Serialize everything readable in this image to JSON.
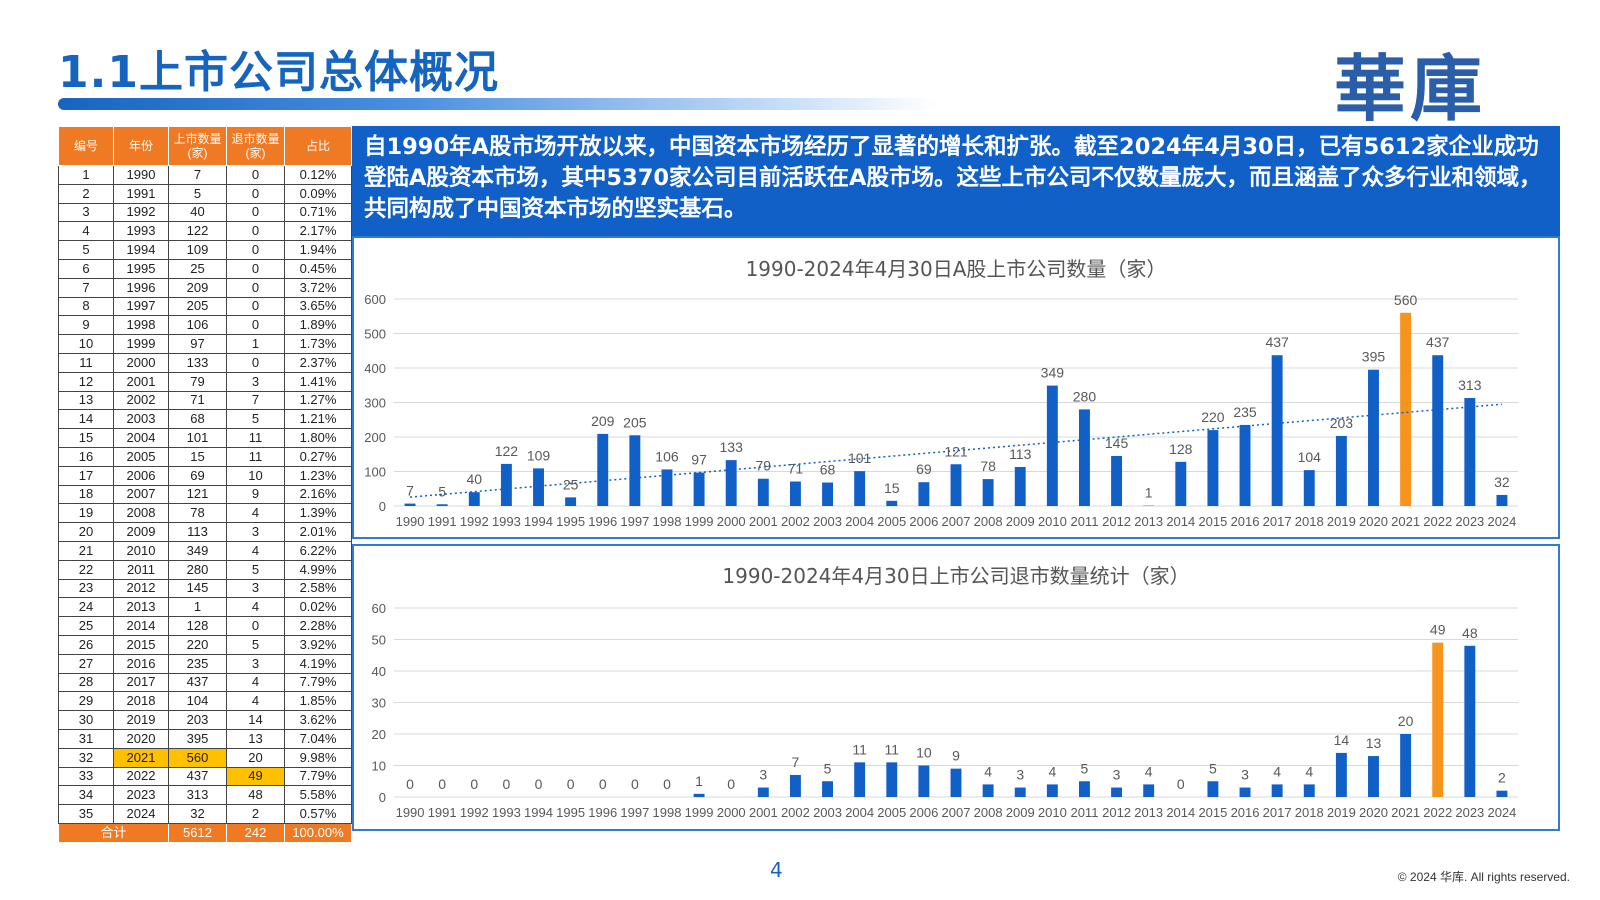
{
  "header": {
    "title": "1.1上市公司总体概况",
    "logo": "華庫"
  },
  "table": {
    "headers": [
      "编号",
      "年份",
      "上市数量\n(家)",
      "退市数量\n(家)",
      "占比"
    ],
    "rows": [
      [
        "1",
        "1990",
        "7",
        "0",
        "0.12%"
      ],
      [
        "2",
        "1991",
        "5",
        "0",
        "0.09%"
      ],
      [
        "3",
        "1992",
        "40",
        "0",
        "0.71%"
      ],
      [
        "4",
        "1993",
        "122",
        "0",
        "2.17%"
      ],
      [
        "5",
        "1994",
        "109",
        "0",
        "1.94%"
      ],
      [
        "6",
        "1995",
        "25",
        "0",
        "0.45%"
      ],
      [
        "7",
        "1996",
        "209",
        "0",
        "3.72%"
      ],
      [
        "8",
        "1997",
        "205",
        "0",
        "3.65%"
      ],
      [
        "9",
        "1998",
        "106",
        "0",
        "1.89%"
      ],
      [
        "10",
        "1999",
        "97",
        "1",
        "1.73%"
      ],
      [
        "11",
        "2000",
        "133",
        "0",
        "2.37%"
      ],
      [
        "12",
        "2001",
        "79",
        "3",
        "1.41%"
      ],
      [
        "13",
        "2002",
        "71",
        "7",
        "1.27%"
      ],
      [
        "14",
        "2003",
        "68",
        "5",
        "1.21%"
      ],
      [
        "15",
        "2004",
        "101",
        "11",
        "1.80%"
      ],
      [
        "16",
        "2005",
        "15",
        "11",
        "0.27%"
      ],
      [
        "17",
        "2006",
        "69",
        "10",
        "1.23%"
      ],
      [
        "18",
        "2007",
        "121",
        "9",
        "2.16%"
      ],
      [
        "19",
        "2008",
        "78",
        "4",
        "1.39%"
      ],
      [
        "20",
        "2009",
        "113",
        "3",
        "2.01%"
      ],
      [
        "21",
        "2010",
        "349",
        "4",
        "6.22%"
      ],
      [
        "22",
        "2011",
        "280",
        "5",
        "4.99%"
      ],
      [
        "23",
        "2012",
        "145",
        "3",
        "2.58%"
      ],
      [
        "24",
        "2013",
        "1",
        "4",
        "0.02%"
      ],
      [
        "25",
        "2014",
        "128",
        "0",
        "2.28%"
      ],
      [
        "26",
        "2015",
        "220",
        "5",
        "3.92%"
      ],
      [
        "27",
        "2016",
        "235",
        "3",
        "4.19%"
      ],
      [
        "28",
        "2017",
        "437",
        "4",
        "7.79%"
      ],
      [
        "29",
        "2018",
        "104",
        "4",
        "1.85%"
      ],
      [
        "30",
        "2019",
        "203",
        "14",
        "3.62%"
      ],
      [
        "31",
        "2020",
        "395",
        "13",
        "7.04%"
      ],
      [
        "32",
        "2021",
        "560",
        "20",
        "9.98%"
      ],
      [
        "33",
        "2022",
        "437",
        "49",
        "7.79%"
      ],
      [
        "34",
        "2023",
        "313",
        "48",
        "5.58%"
      ],
      [
        "35",
        "2024",
        "32",
        "2",
        "0.57%"
      ]
    ],
    "total": [
      "合计",
      "5612",
      "242",
      "100.00%"
    ],
    "highlight_color": "#ffc000",
    "header_color": "#f07a24"
  },
  "intro": {
    "text": "自1990年A股市场开放以来，中国资本市场经历了显著的增长和扩张。截至2024年4月30日，已有5612家企业成功登陆A股资本市场，其中5370家公司目前活跃在A股市场。这些上市公司不仅数量庞大，而且涵盖了众多行业和领域，共同构成了中国资本市场的坚实基石。"
  },
  "chart_data": [
    {
      "type": "bar",
      "title": "1990-2024年4月30日A股上市公司数量（家）",
      "categories": [
        "1990",
        "1991",
        "1992",
        "1993",
        "1994",
        "1995",
        "1996",
        "1997",
        "1998",
        "1999",
        "2000",
        "2001",
        "2002",
        "2003",
        "2004",
        "2005",
        "2006",
        "2007",
        "2008",
        "2009",
        "2010",
        "2011",
        "2012",
        "2013",
        "2014",
        "2015",
        "2016",
        "2017",
        "2018",
        "2019",
        "2020",
        "2021",
        "2022",
        "2023",
        "2024"
      ],
      "values": [
        7,
        5,
        40,
        122,
        109,
        25,
        209,
        205,
        106,
        97,
        133,
        79,
        71,
        68,
        101,
        15,
        69,
        121,
        78,
        113,
        349,
        280,
        145,
        1,
        128,
        220,
        235,
        437,
        104,
        203,
        395,
        560,
        437,
        313,
        32
      ],
      "ylim": [
        0,
        600
      ],
      "yticks": [
        0,
        100,
        200,
        300,
        400,
        500,
        600
      ],
      "highlight_category": "2021",
      "bar_color": "#1160c8",
      "highlight_color": "#f7941d",
      "trendline": "linear dotted",
      "grid": true
    },
    {
      "type": "bar",
      "title": "1990-2024年4月30日上市公司退市数量统计（家）",
      "categories": [
        "1990",
        "1991",
        "1992",
        "1993",
        "1994",
        "1995",
        "1996",
        "1997",
        "1998",
        "1999",
        "2000",
        "2001",
        "2002",
        "2003",
        "2004",
        "2005",
        "2006",
        "2007",
        "2008",
        "2009",
        "2010",
        "2011",
        "2012",
        "2013",
        "2014",
        "2015",
        "2016",
        "2017",
        "2018",
        "2019",
        "2020",
        "2021",
        "2022",
        "2023",
        "2024"
      ],
      "values": [
        0,
        0,
        0,
        0,
        0,
        0,
        0,
        0,
        0,
        1,
        0,
        3,
        7,
        5,
        11,
        11,
        10,
        9,
        4,
        3,
        4,
        5,
        3,
        4,
        0,
        5,
        3,
        4,
        4,
        14,
        13,
        20,
        49,
        48,
        2
      ],
      "ylim": [
        0,
        60
      ],
      "yticks": [
        0,
        10,
        20,
        30,
        40,
        50,
        60
      ],
      "highlight_category": "2022",
      "bar_color": "#1160c8",
      "highlight_color": "#f7941d",
      "grid": true
    }
  ],
  "footer": {
    "page": "4",
    "copyright": "© 2024 华库. All rights reserved."
  }
}
